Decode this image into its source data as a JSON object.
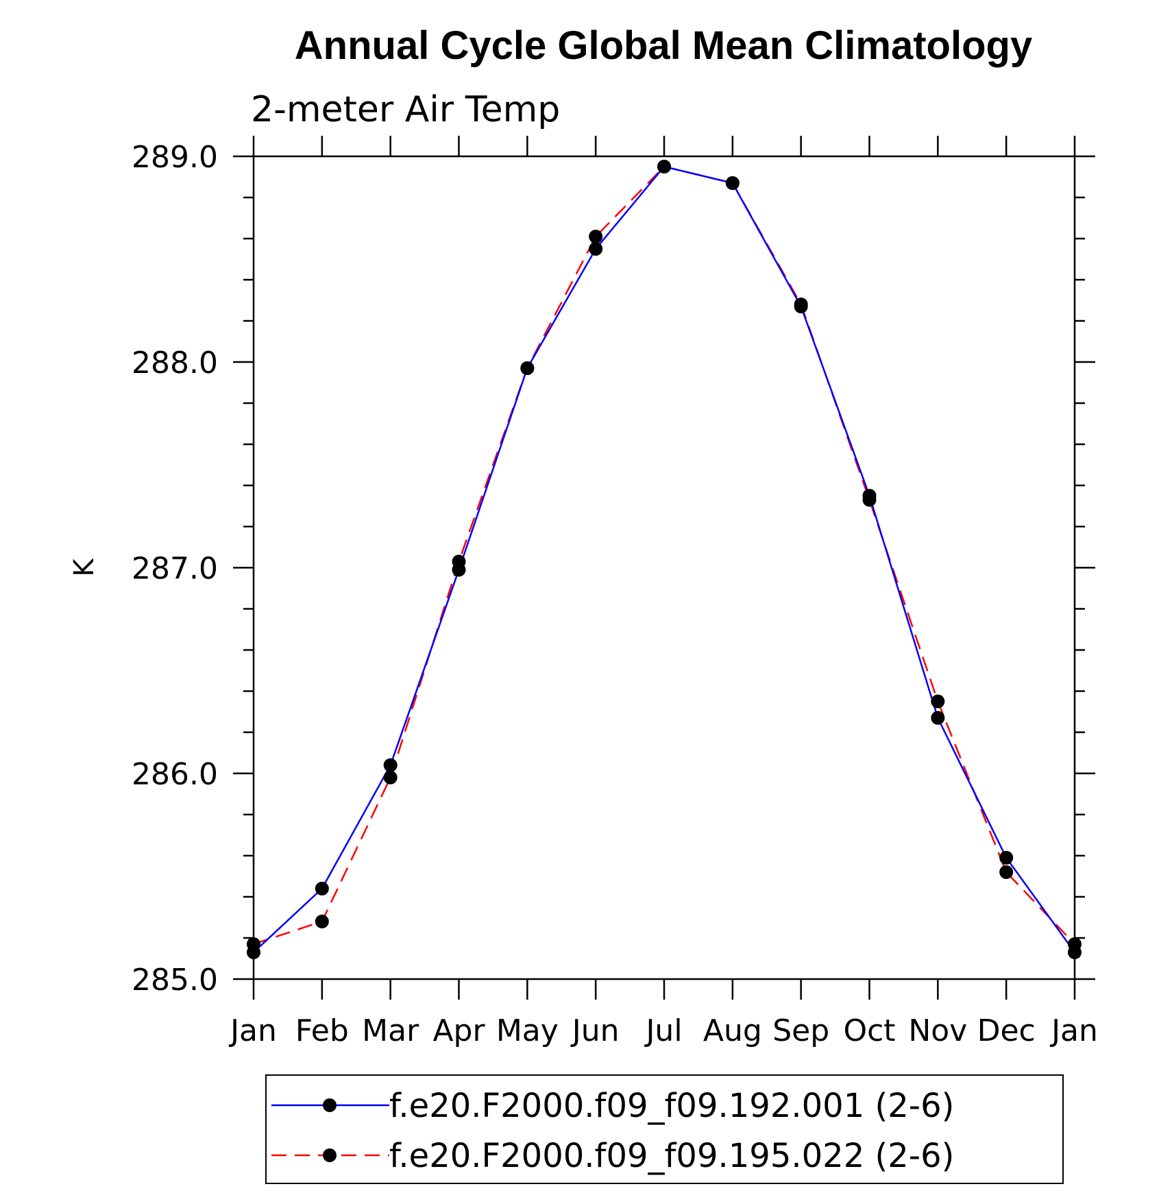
{
  "chart_data": {
    "type": "line",
    "title": "Annual Cycle Global Mean Climatology",
    "subtitle": "2-meter Air Temp",
    "ylabel": "K",
    "xlabel": "",
    "categories": [
      "Jan",
      "Feb",
      "Mar",
      "Apr",
      "May",
      "Jun",
      "Jul",
      "Aug",
      "Sep",
      "Oct",
      "Nov",
      "Dec",
      "Jan"
    ],
    "ylim": [
      285.0,
      289.0
    ],
    "yticks": [
      "289.0",
      "288.0",
      "287.0",
      "286.0",
      "285.0"
    ],
    "ytick_values": [
      289.0,
      288.0,
      287.0,
      286.0,
      285.0
    ],
    "series": [
      {
        "name": "f.e20.F2000.f09_f09.192.001 (2-6)",
        "color": "#0000ff",
        "style": "solid",
        "values": [
          285.13,
          285.44,
          286.04,
          286.99,
          287.97,
          288.55,
          288.95,
          288.87,
          288.27,
          287.35,
          286.27,
          285.59,
          285.13
        ]
      },
      {
        "name": "f.e20.F2000.f09_f09.195.022 (2-6)",
        "color": "#ff0000",
        "style": "dashed",
        "values": [
          285.17,
          285.28,
          285.98,
          287.03,
          287.97,
          288.61,
          288.95,
          288.87,
          288.28,
          287.33,
          286.35,
          285.52,
          285.17
        ]
      }
    ],
    "legend_position": "bottom"
  }
}
